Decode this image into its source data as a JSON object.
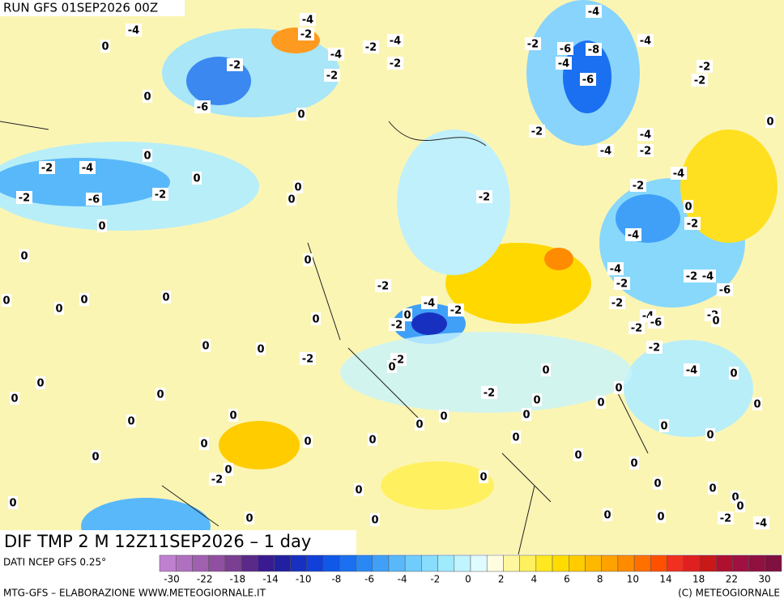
{
  "header": {
    "run": "RUN GFS 01SEP2026 00Z"
  },
  "map": {
    "title": "DIF TMP 2 M 12Z11SEP2026 – 1 day",
    "contour_labels": [
      -4,
      0,
      -4,
      -2,
      -4,
      -2,
      -4,
      -2,
      -2,
      -2,
      -6,
      0,
      0,
      0,
      -2,
      -4,
      -2,
      -6,
      -2,
      0,
      0,
      0,
      0,
      0,
      0,
      0,
      0,
      0,
      0,
      0,
      0,
      -2,
      -2,
      -4,
      -2,
      0,
      -2,
      -2,
      0,
      0,
      0,
      0,
      0,
      0,
      0,
      0,
      0,
      0,
      -2,
      0,
      0,
      0,
      0,
      0,
      0,
      0,
      -2,
      -2,
      -2,
      -6,
      -8,
      -4,
      -4,
      -4,
      -6,
      -4,
      -4,
      -2,
      -2,
      -2,
      0,
      -4,
      -2,
      0,
      -2,
      -4,
      -4,
      -2,
      -2,
      -4,
      -6,
      -2,
      -4,
      -6,
      -2,
      0,
      -2,
      -2,
      -4,
      0,
      0,
      0,
      0,
      0,
      0,
      0,
      -2,
      0,
      0,
      0,
      0,
      0,
      0,
      0,
      0,
      0,
      -4,
      -2,
      0,
      0,
      0,
      0
    ]
  },
  "legend": {
    "source": "DATI NCEP GFS 0.25°",
    "colors": [
      "#c080d0",
      "#b070c0",
      "#a060b0",
      "#904fa0",
      "#7a3f90",
      "#5a2a88",
      "#3a1a90",
      "#2020a0",
      "#1830c0",
      "#1040d8",
      "#1058e8",
      "#1a70f0",
      "#2a88f5",
      "#40a0f8",
      "#58b8fa",
      "#70ccfc",
      "#88dcfd",
      "#a0eafe",
      "#c0f4fe",
      "#e0fbff",
      "#fffde0",
      "#fff7a0",
      "#fff060",
      "#ffe820",
      "#ffdc00",
      "#ffcc00",
      "#ffb800",
      "#ffa200",
      "#ff8c00",
      "#ff7000",
      "#ff5000",
      "#f03020",
      "#e02020",
      "#c81818",
      "#b01030",
      "#a01040",
      "#901040",
      "#801040"
    ],
    "ticks": [
      -30,
      -22,
      -18,
      -14,
      -10,
      -8,
      -6,
      -4,
      -2,
      0,
      2,
      4,
      6,
      8,
      10,
      14,
      18,
      22,
      30
    ]
  },
  "footer": {
    "credit": "MTG-GFS – ELABORAZIONE WWW.METEOGIORNALE.IT",
    "copyright": "(C) METEOGIORNALE"
  }
}
